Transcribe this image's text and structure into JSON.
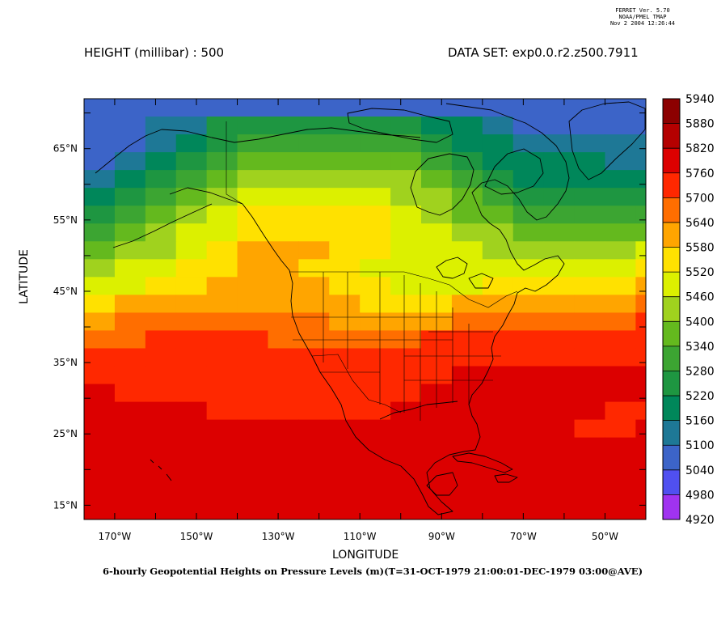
{
  "header": {
    "ferret_version": "FERRET Ver. 5.70",
    "ferret_org": "NOAA/PMEL TMAP",
    "ferret_date": "Nov  2 2004 12:26:44",
    "variable_title": "HEIGHT (millibar) : 500",
    "dataset_title": "DATA SET: exp0.0.r2.z500.7911"
  },
  "caption": "6-hourly Geopotential Heights on Pressure Levels (m)(T=31-OCT-1979 21:00:01-DEC-1979 03:00@AVE)",
  "chart_data": {
    "type": "heatmap",
    "title": "HEIGHT (millibar) : 500",
    "xlabel": "LONGITUDE",
    "ylabel": "LATITUDE",
    "xlim": [
      -177.5,
      -40
    ],
    "ylim": [
      13,
      72
    ],
    "x_ticks": [
      {
        "value": -170,
        "label": "170°W"
      },
      {
        "value": -150,
        "label": "150°W"
      },
      {
        "value": -130,
        "label": "130°W"
      },
      {
        "value": -110,
        "label": "110°W"
      },
      {
        "value": -90,
        "label": "90°W"
      },
      {
        "value": -70,
        "label": "70°W"
      },
      {
        "value": -50,
        "label": "50°W"
      }
    ],
    "y_ticks": [
      {
        "value": 15,
        "label": "15°N"
      },
      {
        "value": 25,
        "label": "25°N"
      },
      {
        "value": 35,
        "label": "35°N"
      },
      {
        "value": 45,
        "label": "45°N"
      },
      {
        "value": 55,
        "label": "55°N"
      },
      {
        "value": 65,
        "label": "65°N"
      }
    ],
    "colorbar": {
      "levels": [
        4920,
        4980,
        5040,
        5100,
        5160,
        5220,
        5280,
        5340,
        5400,
        5460,
        5520,
        5580,
        5640,
        5700,
        5760,
        5820,
        5880,
        5940
      ],
      "colors": [
        "#ee00ee",
        "#a033f0",
        "#5050f0",
        "#3c64c8",
        "#1e7896",
        "#00875a",
        "#1e9641",
        "#3ca532",
        "#64b91e",
        "#a0d21e",
        "#dcf000",
        "#ffe100",
        "#ffa500",
        "#ff6e00",
        "#ff2800",
        "#dc0000",
        "#b40000",
        "#8c0000"
      ]
    },
    "grid": {
      "cell_width_deg": 7.5,
      "cell_height_deg": 2.5,
      "lon_start": -177.5,
      "lat_top": 72,
      "rows": [
        {
          "lat": 71,
          "values": [
            5100,
            5100,
            5100,
            5100,
            5100,
            5100,
            5100,
            5100,
            5100,
            5100,
            5100,
            5100,
            5100,
            5100,
            5100,
            5100,
            5100,
            5100,
            5100
          ]
        },
        {
          "lat": 69,
          "values": [
            5100,
            5100,
            5160,
            5160,
            5280,
            5280,
            5280,
            5280,
            5280,
            5280,
            5280,
            5220,
            5220,
            5160,
            5100,
            5100,
            5100,
            5100,
            5100
          ]
        },
        {
          "lat": 66.5,
          "values": [
            5100,
            5100,
            5160,
            5220,
            5280,
            5340,
            5340,
            5340,
            5340,
            5340,
            5340,
            5280,
            5220,
            5220,
            5160,
            5160,
            5160,
            5160,
            5160
          ]
        },
        {
          "lat": 64,
          "values": [
            5100,
            5160,
            5220,
            5280,
            5340,
            5400,
            5400,
            5400,
            5400,
            5400,
            5400,
            5340,
            5280,
            5220,
            5220,
            5220,
            5220,
            5160,
            5160
          ]
        },
        {
          "lat": 61.5,
          "values": [
            5160,
            5220,
            5280,
            5340,
            5400,
            5460,
            5460,
            5460,
            5460,
            5460,
            5460,
            5400,
            5340,
            5280,
            5220,
            5220,
            5220,
            5220,
            5220
          ]
        },
        {
          "lat": 59,
          "values": [
            5220,
            5280,
            5340,
            5400,
            5460,
            5520,
            5520,
            5520,
            5520,
            5520,
            5460,
            5460,
            5400,
            5340,
            5280,
            5280,
            5280,
            5280,
            5280
          ]
        },
        {
          "lat": 56.5,
          "values": [
            5280,
            5340,
            5400,
            5460,
            5520,
            5580,
            5580,
            5580,
            5580,
            5580,
            5520,
            5460,
            5400,
            5400,
            5340,
            5340,
            5340,
            5340,
            5340
          ]
        },
        {
          "lat": 54,
          "values": [
            5340,
            5400,
            5460,
            5520,
            5520,
            5580,
            5580,
            5580,
            5580,
            5580,
            5520,
            5520,
            5460,
            5460,
            5400,
            5400,
            5400,
            5400,
            5400
          ]
        },
        {
          "lat": 51.5,
          "values": [
            5400,
            5460,
            5460,
            5520,
            5580,
            5640,
            5640,
            5640,
            5580,
            5580,
            5520,
            5520,
            5520,
            5460,
            5460,
            5460,
            5460,
            5460,
            5520
          ]
        },
        {
          "lat": 49,
          "values": [
            5460,
            5520,
            5520,
            5580,
            5580,
            5640,
            5640,
            5580,
            5580,
            5520,
            5520,
            5520,
            5520,
            5520,
            5520,
            5520,
            5520,
            5520,
            5580
          ]
        },
        {
          "lat": 46.5,
          "values": [
            5520,
            5520,
            5580,
            5580,
            5640,
            5640,
            5640,
            5640,
            5580,
            5580,
            5520,
            5520,
            5520,
            5580,
            5580,
            5580,
            5580,
            5580,
            5640
          ]
        },
        {
          "lat": 44,
          "values": [
            5580,
            5640,
            5640,
            5640,
            5640,
            5640,
            5640,
            5640,
            5640,
            5580,
            5580,
            5580,
            5640,
            5640,
            5640,
            5640,
            5640,
            5640,
            5700
          ]
        },
        {
          "lat": 41.5,
          "values": [
            5640,
            5700,
            5700,
            5700,
            5700,
            5700,
            5700,
            5700,
            5640,
            5640,
            5640,
            5640,
            5700,
            5700,
            5700,
            5700,
            5700,
            5700,
            5760
          ]
        },
        {
          "lat": 39,
          "values": [
            5700,
            5700,
            5760,
            5760,
            5760,
            5760,
            5700,
            5700,
            5700,
            5700,
            5700,
            5760,
            5760,
            5760,
            5760,
            5760,
            5760,
            5760,
            5760
          ]
        },
        {
          "lat": 36.5,
          "values": [
            5760,
            5760,
            5760,
            5760,
            5760,
            5760,
            5760,
            5760,
            5760,
            5760,
            5760,
            5760,
            5760,
            5760,
            5760,
            5760,
            5760,
            5760,
            5760
          ]
        },
        {
          "lat": 34,
          "values": [
            5760,
            5760,
            5760,
            5760,
            5760,
            5760,
            5760,
            5760,
            5760,
            5760,
            5760,
            5760,
            5820,
            5820,
            5820,
            5820,
            5820,
            5820,
            5820
          ]
        },
        {
          "lat": 31.5,
          "values": [
            5820,
            5760,
            5760,
            5760,
            5760,
            5760,
            5760,
            5760,
            5760,
            5760,
            5760,
            5820,
            5820,
            5820,
            5820,
            5820,
            5820,
            5820,
            5820
          ]
        },
        {
          "lat": 29,
          "values": [
            5820,
            5820,
            5820,
            5820,
            5760,
            5760,
            5760,
            5760,
            5760,
            5760,
            5820,
            5820,
            5820,
            5820,
            5820,
            5820,
            5820,
            5760,
            5760
          ]
        },
        {
          "lat": 26.5,
          "values": [
            5820,
            5820,
            5820,
            5820,
            5820,
            5820,
            5820,
            5820,
            5820,
            5820,
            5820,
            5820,
            5820,
            5820,
            5820,
            5820,
            5760,
            5760,
            5820
          ]
        },
        {
          "lat": 24,
          "values": [
            5820,
            5820,
            5820,
            5820,
            5820,
            5820,
            5820,
            5820,
            5820,
            5820,
            5820,
            5820,
            5820,
            5820,
            5820,
            5820,
            5820,
            5820,
            5820
          ]
        },
        {
          "lat": 21.5,
          "values": [
            5820,
            5820,
            5820,
            5820,
            5820,
            5820,
            5820,
            5820,
            5820,
            5820,
            5820,
            5820,
            5820,
            5820,
            5820,
            5820,
            5820,
            5820,
            5820
          ]
        },
        {
          "lat": 19,
          "values": [
            5820,
            5820,
            5820,
            5820,
            5820,
            5820,
            5820,
            5820,
            5820,
            5820,
            5820,
            5820,
            5820,
            5820,
            5820,
            5820,
            5820,
            5820,
            5820
          ]
        },
        {
          "lat": 16.5,
          "values": [
            5820,
            5820,
            5820,
            5820,
            5820,
            5820,
            5820,
            5820,
            5820,
            5820,
            5820,
            5820,
            5820,
            5820,
            5820,
            5820,
            5820,
            5820,
            5820
          ]
        },
        {
          "lat": 14,
          "values": [
            5820,
            5820,
            5820,
            5820,
            5820,
            5820,
            5820,
            5820,
            5820,
            5820,
            5820,
            5820,
            5820,
            5820,
            5820,
            5820,
            5820,
            5820,
            5820
          ]
        }
      ]
    }
  }
}
